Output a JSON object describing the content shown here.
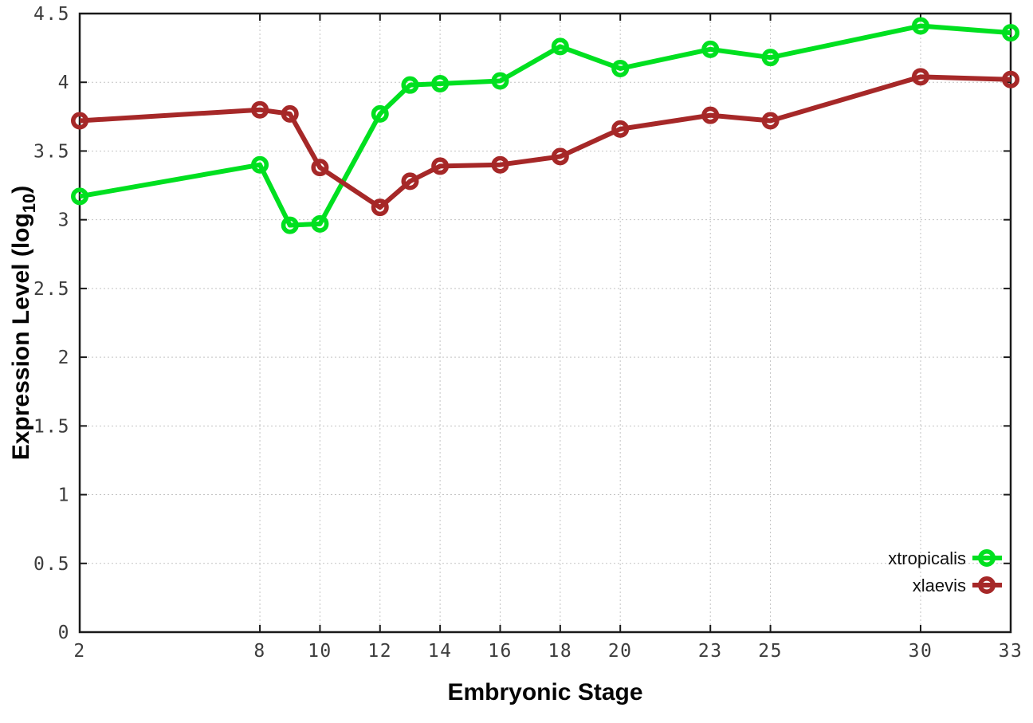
{
  "chart_data": {
    "type": "line",
    "title": "",
    "xlabel": "Embryonic Stage",
    "ylabel": "Expression Level (log10)",
    "ylabel_parts": {
      "main": "Expression Level (log",
      "sub": "10",
      "close": ")"
    },
    "x": [
      2,
      8,
      9,
      10,
      12,
      13,
      14,
      16,
      18,
      20,
      23,
      25,
      30,
      33
    ],
    "series": [
      {
        "name": "xtropicalis",
        "color": "#00e020",
        "values": [
          3.17,
          3.4,
          2.96,
          2.97,
          3.77,
          3.98,
          3.99,
          4.01,
          4.26,
          4.1,
          4.24,
          4.18,
          4.41,
          4.36
        ]
      },
      {
        "name": "xlaevis",
        "color": "#a62828",
        "values": [
          3.72,
          3.8,
          3.77,
          3.38,
          3.09,
          3.28,
          3.39,
          3.4,
          3.46,
          3.66,
          3.76,
          3.72,
          4.04,
          4.02
        ]
      }
    ],
    "x_ticks": [
      2,
      8,
      10,
      12,
      14,
      16,
      18,
      20,
      23,
      25,
      30,
      33
    ],
    "y_ticks": [
      0,
      0.5,
      1,
      1.5,
      2,
      2.5,
      3,
      3.5,
      4,
      4.5
    ],
    "xlim": [
      2,
      33
    ],
    "ylim": [
      0,
      4.5
    ],
    "grid": true,
    "legend_position": "bottom-right",
    "marker": "open-circle",
    "background_color": "#ffffff",
    "border_color": "#1a1a1a"
  }
}
